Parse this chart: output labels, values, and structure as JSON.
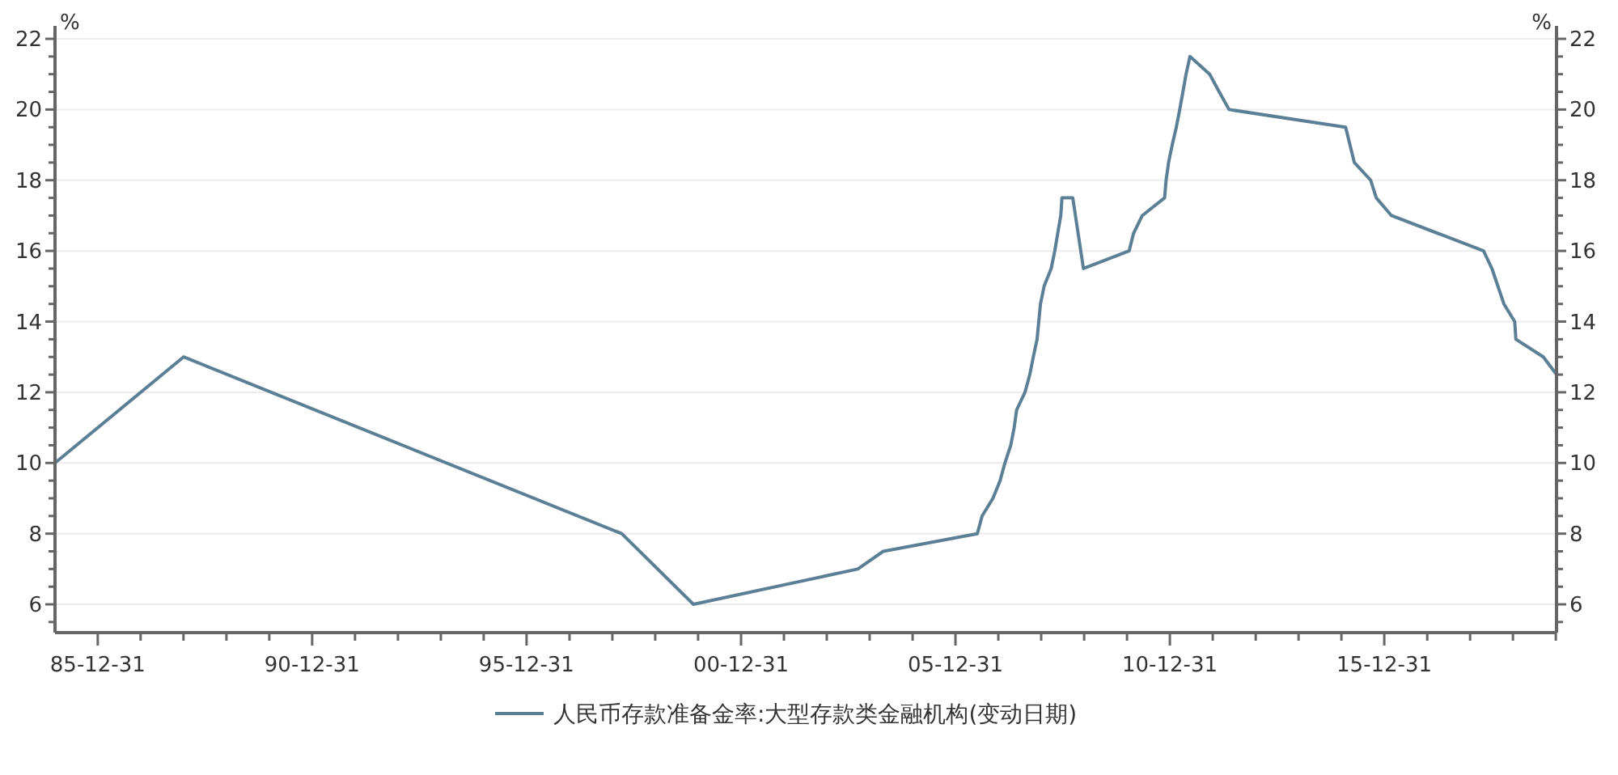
{
  "chart_data": {
    "type": "line",
    "ylabel": "%",
    "y2label": "%",
    "grid": "y",
    "legend": "bottom",
    "marker": "none",
    "line_style": "solid",
    "xlim": [
      "1985-01-01",
      "2020-01-06"
    ],
    "xticks": [
      {
        "value": "1985-12-31",
        "label": "85-12-31"
      },
      {
        "value": "1986-12-31",
        "label": null
      },
      {
        "value": "1987-12-31",
        "label": null
      },
      {
        "value": "1988-12-31",
        "label": null
      },
      {
        "value": "1989-12-31",
        "label": null
      },
      {
        "value": "1990-12-31",
        "label": "90-12-31"
      },
      {
        "value": "1991-12-31",
        "label": null
      },
      {
        "value": "1992-12-31",
        "label": null
      },
      {
        "value": "1993-12-31",
        "label": null
      },
      {
        "value": "1994-12-31",
        "label": null
      },
      {
        "value": "1995-12-31",
        "label": "95-12-31"
      },
      {
        "value": "1996-12-31",
        "label": null
      },
      {
        "value": "1997-12-31",
        "label": null
      },
      {
        "value": "1998-12-31",
        "label": null
      },
      {
        "value": "1999-12-31",
        "label": null
      },
      {
        "value": "2000-12-31",
        "label": "00-12-31"
      },
      {
        "value": "2001-12-31",
        "label": null
      },
      {
        "value": "2002-12-31",
        "label": null
      },
      {
        "value": "2003-12-31",
        "label": null
      },
      {
        "value": "2004-12-31",
        "label": null
      },
      {
        "value": "2005-12-31",
        "label": "05-12-31"
      },
      {
        "value": "2006-12-31",
        "label": null
      },
      {
        "value": "2007-12-31",
        "label": null
      },
      {
        "value": "2008-12-31",
        "label": null
      },
      {
        "value": "2009-12-31",
        "label": null
      },
      {
        "value": "2010-12-31",
        "label": "10-12-31"
      },
      {
        "value": "2011-12-31",
        "label": null
      },
      {
        "value": "2012-12-31",
        "label": null
      },
      {
        "value": "2013-12-31",
        "label": null
      },
      {
        "value": "2014-12-31",
        "label": null
      },
      {
        "value": "2015-12-31",
        "label": "15-12-31"
      },
      {
        "value": "2016-12-31",
        "label": null
      },
      {
        "value": "2017-12-31",
        "label": null
      },
      {
        "value": "2018-12-31",
        "label": null
      },
      {
        "value": "2019-12-31",
        "label": null
      }
    ],
    "ylim": [
      5.2,
      22
    ],
    "yticks": [
      {
        "value": 5.5,
        "label": null
      },
      6,
      {
        "value": 6.5,
        "label": null
      },
      {
        "value": 7,
        "label": null
      },
      {
        "value": 7.5,
        "label": null
      },
      8,
      {
        "value": 8.5,
        "label": null
      },
      {
        "value": 9,
        "label": null
      },
      {
        "value": 9.5,
        "label": null
      },
      10,
      {
        "value": 10.5,
        "label": null
      },
      {
        "value": 11,
        "label": null
      },
      {
        "value": 11.5,
        "label": null
      },
      12,
      {
        "value": 12.5,
        "label": null
      },
      {
        "value": 13,
        "label": null
      },
      {
        "value": 13.5,
        "label": null
      },
      14,
      {
        "value": 14.5,
        "label": null
      },
      {
        "value": 15,
        "label": null
      },
      {
        "value": 15.5,
        "label": null
      },
      16,
      {
        "value": 16.5,
        "label": null
      },
      {
        "value": 17,
        "label": null
      },
      {
        "value": 17.5,
        "label": null
      },
      18,
      {
        "value": 18.5,
        "label": null
      },
      {
        "value": 19,
        "label": null
      },
      {
        "value": 19.5,
        "label": null
      },
      20,
      {
        "value": 20.5,
        "label": null
      },
      {
        "value": 21,
        "label": null
      },
      {
        "value": 21.5,
        "label": null
      },
      22
    ],
    "y2lim": [
      5.2,
      22
    ],
    "y2ticks": [
      {
        "value": 5.5,
        "label": null
      },
      6,
      {
        "value": 6.5,
        "label": null
      },
      {
        "value": 7,
        "label": null
      },
      {
        "value": 7.5,
        "label": null
      },
      8,
      {
        "value": 8.5,
        "label": null
      },
      {
        "value": 9,
        "label": null
      },
      {
        "value": 9.5,
        "label": null
      },
      10,
      {
        "value": 10.5,
        "label": null
      },
      {
        "value": 11,
        "label": null
      },
      {
        "value": 11.5,
        "label": null
      },
      12,
      {
        "value": 12.5,
        "label": null
      },
      {
        "value": 13,
        "label": null
      },
      {
        "value": 13.5,
        "label": null
      },
      14,
      {
        "value": 14.5,
        "label": null
      },
      {
        "value": 15,
        "label": null
      },
      {
        "value": 15.5,
        "label": null
      },
      16,
      {
        "value": 16.5,
        "label": null
      },
      {
        "value": 17,
        "label": null
      },
      {
        "value": 17.5,
        "label": null
      },
      18,
      {
        "value": 18.5,
        "label": null
      },
      {
        "value": 19,
        "label": null
      },
      {
        "value": 19.5,
        "label": null
      },
      20,
      {
        "value": 20.5,
        "label": null
      },
      {
        "value": 21,
        "label": null
      },
      {
        "value": 21.5,
        "label": null
      },
      22
    ],
    "series": [
      {
        "name": "人民币存款准备金率:大型存款类金融机构(变动日期)",
        "color": "#5b7f95",
        "x": [
          "1985-01-01",
          "1988-01-01",
          "1998-03-21",
          "1999-11-21",
          "2003-09-21",
          "2004-04-25",
          "2006-07-05",
          "2006-08-15",
          "2006-11-15",
          "2007-01-15",
          "2007-02-25",
          "2007-04-16",
          "2007-05-15",
          "2007-06-05",
          "2007-08-15",
          "2007-09-25",
          "2007-10-25",
          "2007-11-26",
          "2007-12-25",
          "2008-01-25",
          "2008-03-25",
          "2008-04-25",
          "2008-05-20",
          "2008-06-15",
          "2008-06-25",
          "2008-09-25",
          "2008-12-25",
          "2010-01-18",
          "2010-02-25",
          "2010-05-10",
          "2010-11-16",
          "2010-11-29",
          "2010-12-20",
          "2011-01-20",
          "2011-02-24",
          "2011-03-25",
          "2011-04-21",
          "2011-05-18",
          "2011-06-20",
          "2011-12-05",
          "2012-02-24",
          "2012-05-18",
          "2015-02-05",
          "2015-04-20",
          "2015-09-06",
          "2015-10-24",
          "2016-03-01",
          "2018-04-25",
          "2018-07-05",
          "2018-10-15",
          "2019-01-15",
          "2019-01-25",
          "2019-09-16",
          "2020-01-06"
        ],
        "values": [
          10,
          13,
          8,
          6,
          7,
          7.5,
          8,
          8.5,
          9,
          9.5,
          10,
          10.5,
          11,
          11.5,
          12,
          12.5,
          13,
          13.5,
          14.5,
          15,
          15.5,
          16,
          16.5,
          17,
          17.5,
          17.5,
          15.5,
          16,
          16.5,
          17,
          17.5,
          18,
          18.5,
          19,
          19.5,
          20,
          20.5,
          21,
          21.5,
          21,
          20.5,
          20,
          19.5,
          18.5,
          18,
          17.5,
          17,
          16,
          15.5,
          14.5,
          14,
          13.5,
          13,
          12.5
        ]
      }
    ]
  }
}
